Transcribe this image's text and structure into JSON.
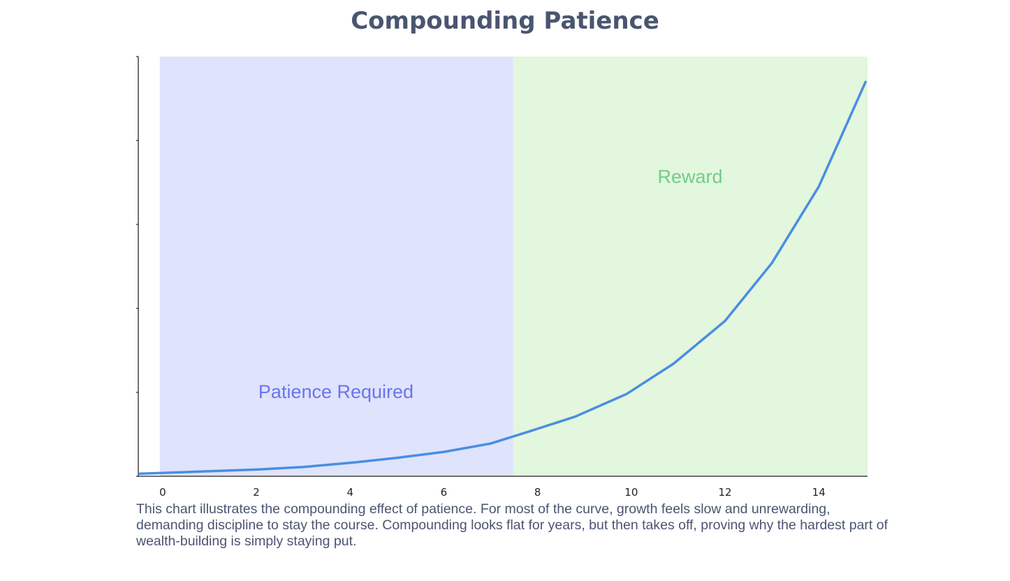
{
  "chart_data": {
    "type": "line",
    "title": "Compounding Patience",
    "xlabel": "",
    "ylabel": "",
    "xlim": [
      -0.52,
      15.04
    ],
    "ylim": [
      0,
      5
    ],
    "x_ticks": [
      0,
      2,
      4,
      6,
      8,
      10,
      12,
      14
    ],
    "y_ticks_unlabeled": [
      0,
      1,
      2,
      3,
      4,
      5
    ],
    "grid": false,
    "series": [
      {
        "color": "#4a8ee0",
        "x": [
          -0.5,
          0,
          1,
          2,
          3,
          4,
          5,
          6,
          7,
          7.8,
          8.8,
          9.9,
          10.9,
          12,
          13,
          14,
          15
        ],
        "y": [
          0.03,
          0.04,
          0.06,
          0.08,
          0.11,
          0.16,
          0.22,
          0.29,
          0.39,
          0.53,
          0.71,
          0.98,
          1.34,
          1.85,
          2.54,
          3.45,
          4.7
        ]
      }
    ],
    "regions": [
      {
        "label": "Patience Required",
        "x_start": -0.06,
        "x_end": 7.48,
        "fill": "#dfe3fc",
        "label_color": "#6b74ee"
      },
      {
        "label": "Reward",
        "x_start": 7.48,
        "x_end": 15.04,
        "fill": "#e3f6de",
        "label_color": "#6fce86"
      }
    ]
  },
  "description": "This chart illustrates the compounding effect of patience. For most of the curve, growth feels slow and unrewarding, demanding discipline to stay the course. Compounding looks flat for years, but then takes off, proving why the hardest part of wealth-building is simply staying put."
}
